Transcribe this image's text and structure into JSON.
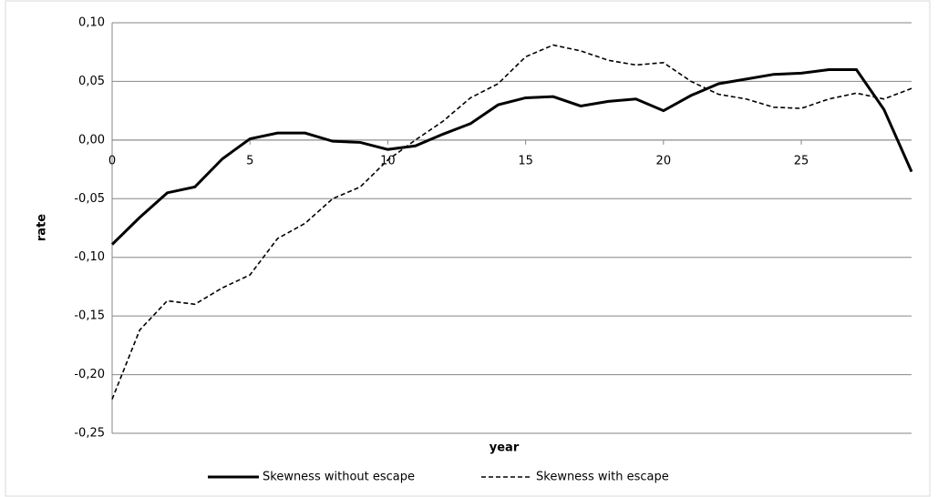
{
  "chart_data": {
    "type": "line",
    "x_label": "year",
    "y_label": "rate",
    "x": [
      0,
      1,
      2,
      3,
      4,
      5,
      6,
      7,
      8,
      9,
      10,
      11,
      12,
      13,
      14,
      15,
      16,
      17,
      18,
      19,
      20,
      21,
      22,
      23,
      24,
      25,
      26,
      27,
      28,
      29
    ],
    "xlim": [
      0,
      29
    ],
    "xticks": [
      0,
      5,
      10,
      15,
      20,
      25
    ],
    "ylim": [
      -0.25,
      0.1
    ],
    "yticks": [
      {
        "value": -0.25,
        "label": "-0,25"
      },
      {
        "value": -0.2,
        "label": "-0,20"
      },
      {
        "value": -0.15,
        "label": "-0,15"
      },
      {
        "value": -0.1,
        "label": "-0,10"
      },
      {
        "value": -0.05,
        "label": "-0,05"
      },
      {
        "value": 0,
        "label": "0,00"
      },
      {
        "value": 0.05,
        "label": "0,05"
      },
      {
        "value": 0.1,
        "label": "0,10"
      }
    ],
    "grid": true,
    "legend": "bottom",
    "series": [
      {
        "name": "Skewness without escape",
        "color": "#000000",
        "dash": "solid",
        "values": [
          -0.089,
          -0.066,
          -0.045,
          -0.04,
          -0.016,
          0.001,
          0.006,
          0.006,
          -0.001,
          -0.002,
          -0.008,
          -0.005,
          0.005,
          0.014,
          0.03,
          0.036,
          0.037,
          0.029,
          0.033,
          0.035,
          0.025,
          0.038,
          0.048,
          0.052,
          0.056,
          0.057,
          0.06,
          0.06,
          0.026,
          -0.027
        ]
      },
      {
        "name": "Skewness with escape",
        "color": "#000000",
        "dash": "dashed",
        "values": [
          -0.221,
          -0.162,
          -0.137,
          -0.14,
          -0.126,
          -0.115,
          -0.084,
          -0.071,
          -0.05,
          -0.04,
          -0.017,
          0.0,
          0.016,
          0.036,
          0.048,
          0.071,
          0.081,
          0.076,
          0.068,
          0.064,
          0.066,
          0.05,
          0.039,
          0.035,
          0.028,
          0.027,
          0.035,
          0.04,
          0.035,
          0.044
        ]
      }
    ]
  }
}
